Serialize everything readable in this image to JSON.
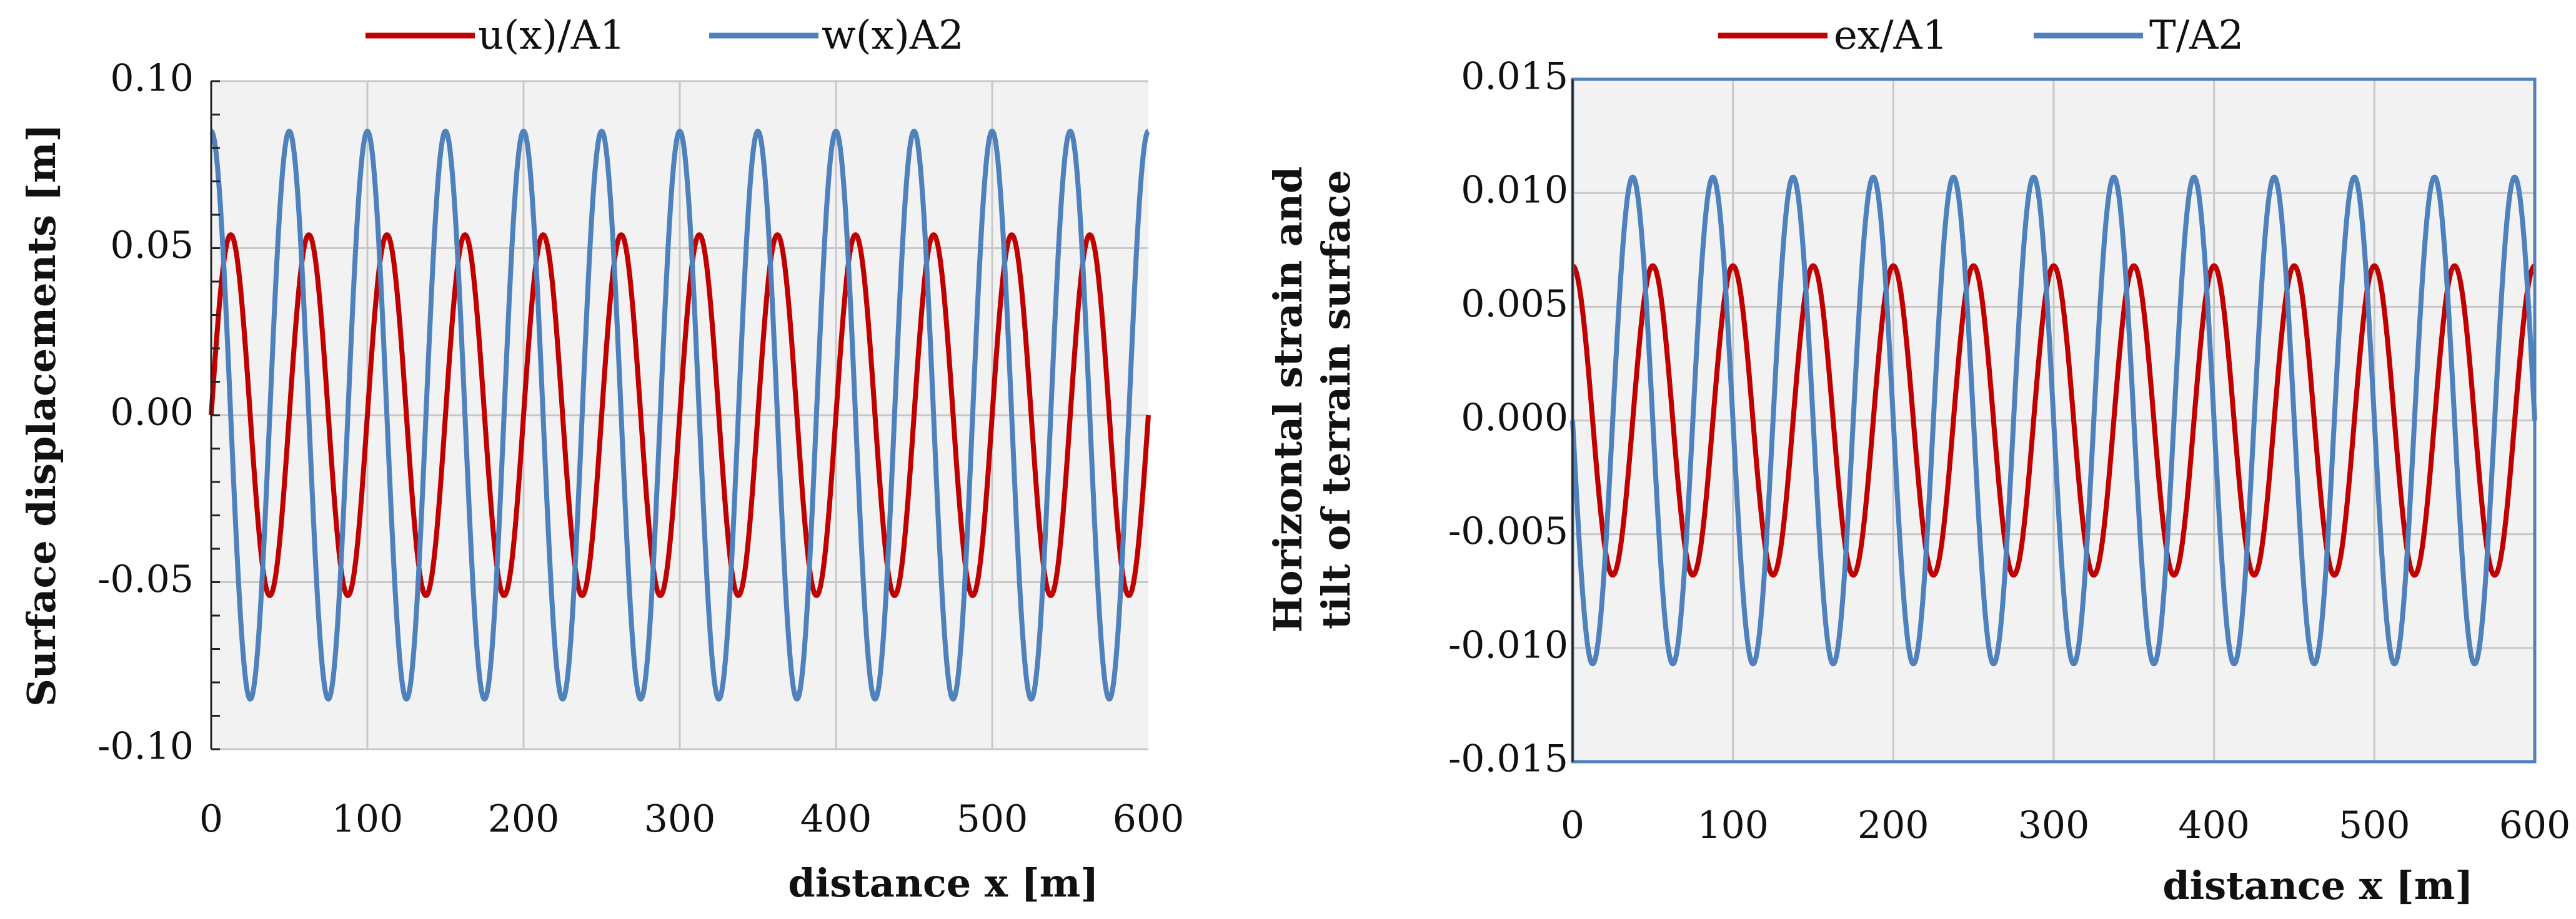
{
  "chart_data": [
    {
      "type": "line",
      "title": "",
      "xlabel": "distance x [m]",
      "ylabel": "Surface displacements [m]",
      "xlim": [
        0,
        600
      ],
      "ylim": [
        -0.1,
        0.1
      ],
      "xticks": [
        "0",
        "100",
        "200",
        "300",
        "400",
        "500",
        "600"
      ],
      "yticks": [
        "0.10",
        "0.05",
        "0.00",
        "-0.05",
        "-0.10"
      ],
      "grid": true,
      "legend": "top-center",
      "period_m": 50,
      "series": [
        {
          "name": "u(x)/A1",
          "color": "#C00000",
          "shape": "sine",
          "amplitude": 0.054,
          "start_phase_deg": 0
        },
        {
          "name": "w(x)A2",
          "color": "#4F81BD",
          "shape": "cosine",
          "amplitude": 0.085,
          "start_phase_deg": 0
        }
      ]
    },
    {
      "type": "line",
      "title": "",
      "xlabel": "distance x [m]",
      "ylabel": [
        "Horizontal strain and",
        "tilt of terrain surface"
      ],
      "xlim": [
        0,
        600
      ],
      "ylim": [
        -0.015,
        0.015
      ],
      "xticks": [
        "0",
        "100",
        "200",
        "300",
        "400",
        "500",
        "600"
      ],
      "yticks": [
        "0.015",
        "0.010",
        "0.005",
        "0.000",
        "-0.005",
        "-0.010",
        "-0.015"
      ],
      "grid": true,
      "legend": "top-center",
      "period_m": 50,
      "series": [
        {
          "name": "ex/A1",
          "color": "#C00000",
          "shape": "cosine",
          "amplitude": 0.0068,
          "start_phase_deg": 0
        },
        {
          "name": "T/A2",
          "color": "#4F81BD",
          "shape": "negative-sine",
          "amplitude": 0.0107,
          "start_phase_deg": 0
        }
      ]
    }
  ]
}
